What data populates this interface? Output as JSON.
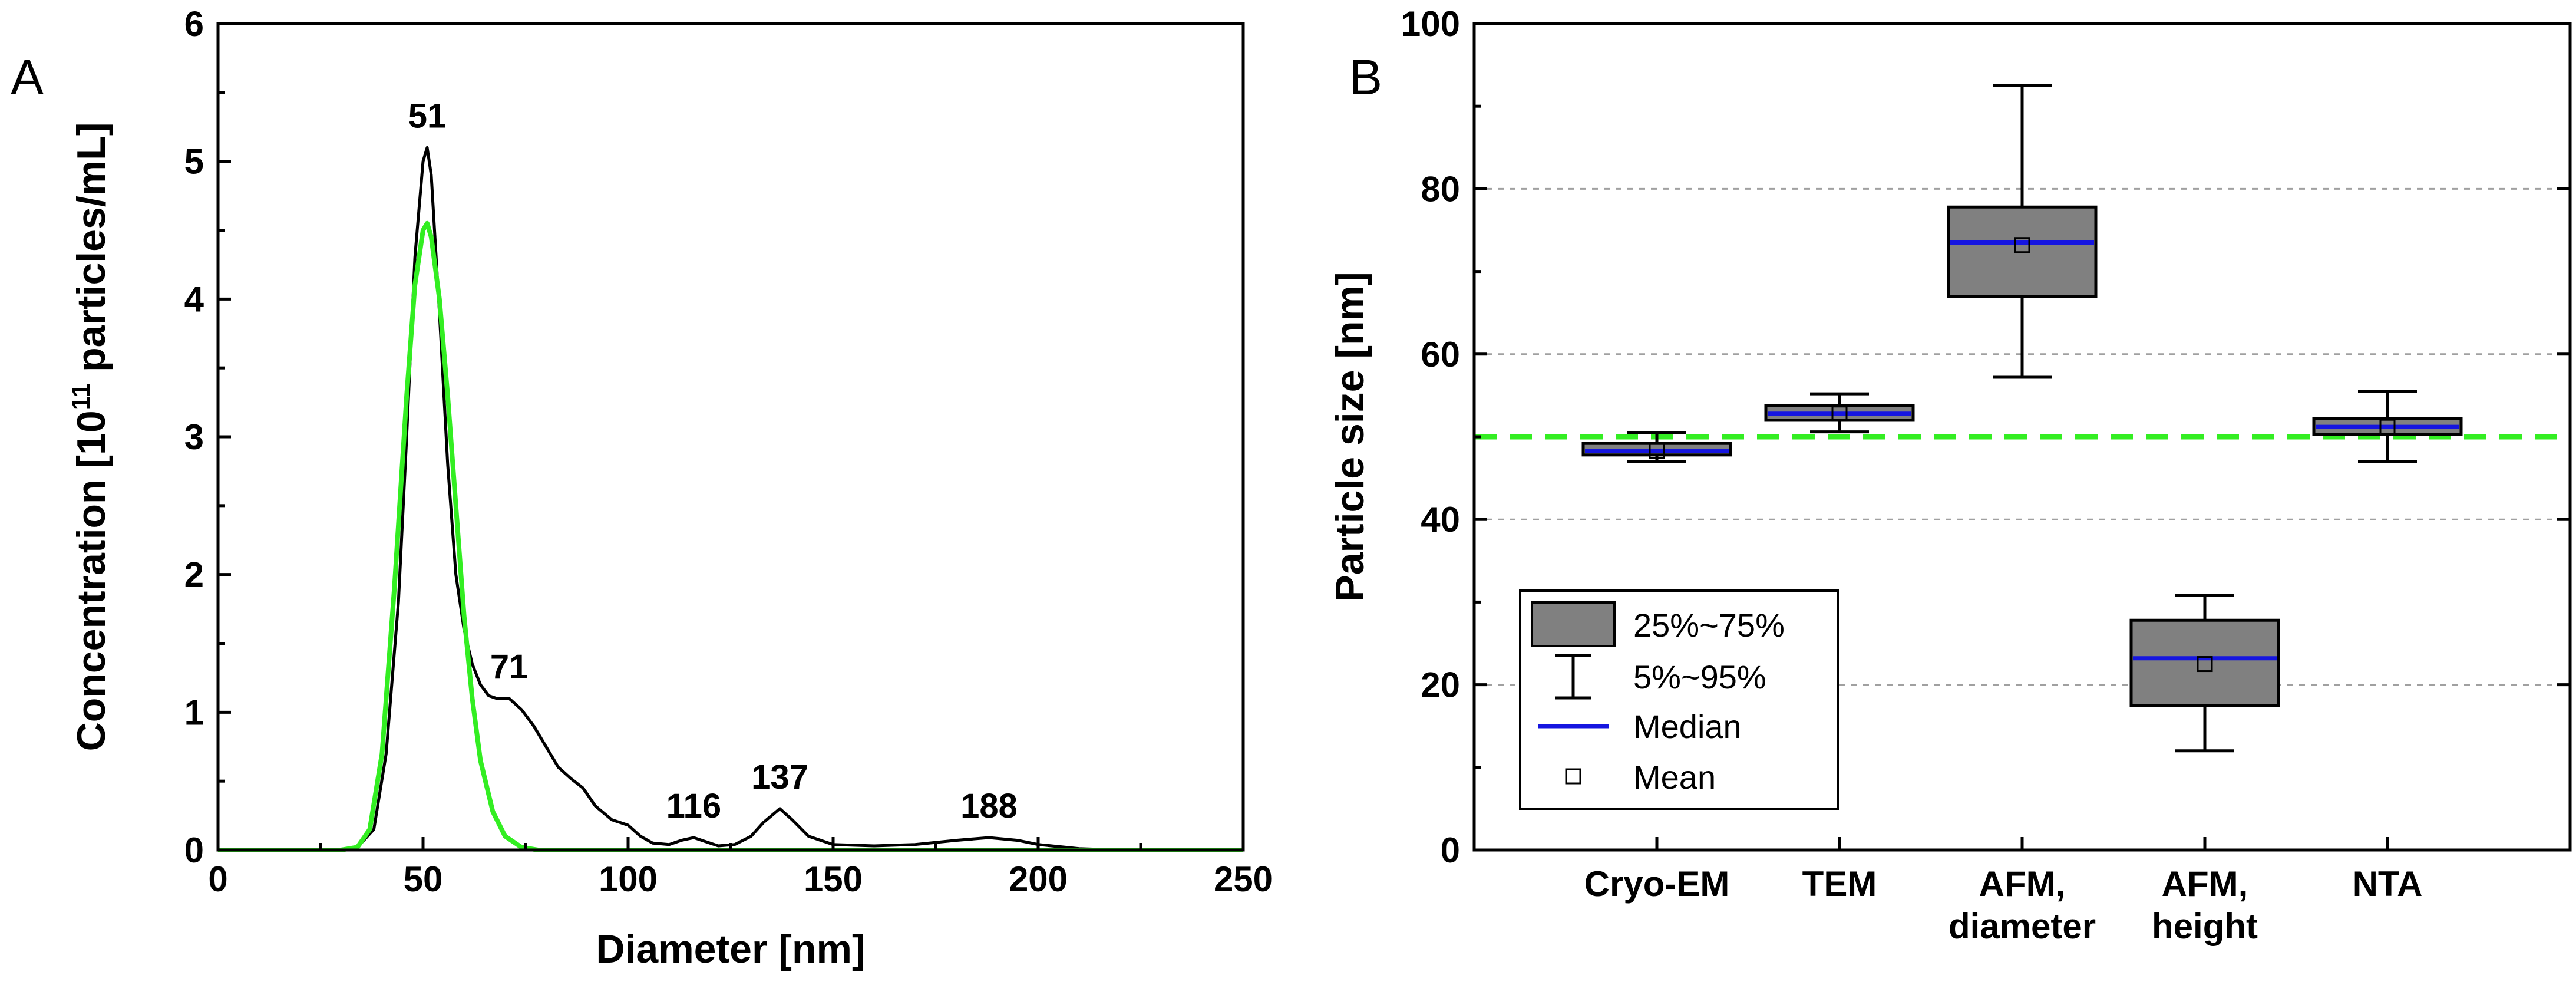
{
  "chart_data": [
    {
      "panel": "A",
      "type": "line",
      "title": "",
      "xlabel": "Diameter [nm]",
      "ylabel_pre": "Concentration [10",
      "ylabel_sup": "11",
      "ylabel_post": " particles/mL]",
      "xlim": [
        0,
        250
      ],
      "ylim": [
        0,
        6
      ],
      "xticks": [
        0,
        50,
        100,
        150,
        200,
        250
      ],
      "yticks": [
        0,
        1,
        2,
        3,
        4,
        5,
        6
      ],
      "grid": false,
      "series": [
        {
          "color": "#000000",
          "x": [
            0,
            30,
            34,
            38,
            41,
            44,
            46,
            48,
            50,
            51,
            52,
            54,
            56,
            58,
            60,
            62,
            64,
            66,
            68,
            71,
            74,
            77,
            80,
            83,
            86,
            89,
            92,
            96,
            100,
            103,
            106,
            110,
            113,
            116,
            119,
            122,
            126,
            130,
            133,
            137,
            140,
            144,
            150,
            160,
            170,
            180,
            188,
            195,
            200,
            210,
            220,
            250
          ],
          "y": [
            0,
            0,
            0.02,
            0.15,
            0.7,
            1.8,
            3.0,
            4.3,
            5.0,
            5.1,
            4.9,
            3.9,
            2.8,
            2.0,
            1.6,
            1.35,
            1.2,
            1.12,
            1.1,
            1.1,
            1.02,
            0.9,
            0.75,
            0.6,
            0.52,
            0.45,
            0.32,
            0.22,
            0.18,
            0.1,
            0.05,
            0.04,
            0.07,
            0.09,
            0.06,
            0.03,
            0.04,
            0.1,
            0.2,
            0.3,
            0.22,
            0.1,
            0.04,
            0.03,
            0.04,
            0.07,
            0.09,
            0.07,
            0.04,
            0.01,
            0,
            0
          ]
        },
        {
          "color": "#33ee22",
          "x": [
            0,
            30,
            34,
            37,
            40,
            43,
            46,
            48,
            50,
            51,
            52,
            54,
            56,
            58,
            60,
            62,
            64,
            67,
            70,
            74,
            78,
            85,
            250
          ],
          "y": [
            0,
            0,
            0.02,
            0.15,
            0.7,
            1.9,
            3.3,
            4.1,
            4.5,
            4.55,
            4.45,
            4.0,
            3.3,
            2.5,
            1.7,
            1.1,
            0.65,
            0.28,
            0.1,
            0.02,
            0,
            0,
            0
          ]
        }
      ],
      "annotations": [
        {
          "text": "51",
          "x": 51,
          "y": 5.1
        },
        {
          "text": "71",
          "x": 71,
          "y": 1.1
        },
        {
          "text": "116",
          "x": 116,
          "y": 0.09
        },
        {
          "text": "137",
          "x": 137,
          "y": 0.3
        },
        {
          "text": "188",
          "x": 188,
          "y": 0.09
        }
      ]
    },
    {
      "panel": "B",
      "type": "box",
      "title": "",
      "xlabel": "",
      "ylabel": "Particle size [nm]",
      "ylim": [
        0,
        100
      ],
      "yticks": [
        0,
        20,
        40,
        60,
        80,
        100
      ],
      "grid": true,
      "reference_line": {
        "y": 50,
        "color": "#33ee22"
      },
      "box_color": "#808080",
      "median_color": "#1515e0",
      "categories": [
        {
          "label_lines": [
            "Cryo-EM"
          ],
          "whisker_low": 47,
          "q1": 47.8,
          "median": 48.3,
          "mean": 48.3,
          "q3": 49.2,
          "whisker_high": 50.5
        },
        {
          "label_lines": [
            "TEM"
          ],
          "whisker_low": 50.6,
          "q1": 52,
          "median": 52.8,
          "mean": 52.8,
          "q3": 53.8,
          "whisker_high": 55.2
        },
        {
          "label_lines": [
            "AFM,",
            "diameter"
          ],
          "whisker_low": 57.2,
          "q1": 67,
          "median": 73.5,
          "mean": 73.2,
          "q3": 77.8,
          "whisker_high": 92.5
        },
        {
          "label_lines": [
            "AFM,",
            "height"
          ],
          "whisker_low": 12,
          "q1": 17.5,
          "median": 23.2,
          "mean": 22.5,
          "q3": 27.8,
          "whisker_high": 30.8
        },
        {
          "label_lines": [
            "NTA"
          ],
          "whisker_low": 47,
          "q1": 50.3,
          "median": 51.2,
          "mean": 51.2,
          "q3": 52.2,
          "whisker_high": 55.5
        }
      ],
      "legend": {
        "placement": "bottom-left",
        "entries": [
          "25%~75%",
          "5%~95%",
          "Median",
          "Mean"
        ]
      }
    }
  ]
}
